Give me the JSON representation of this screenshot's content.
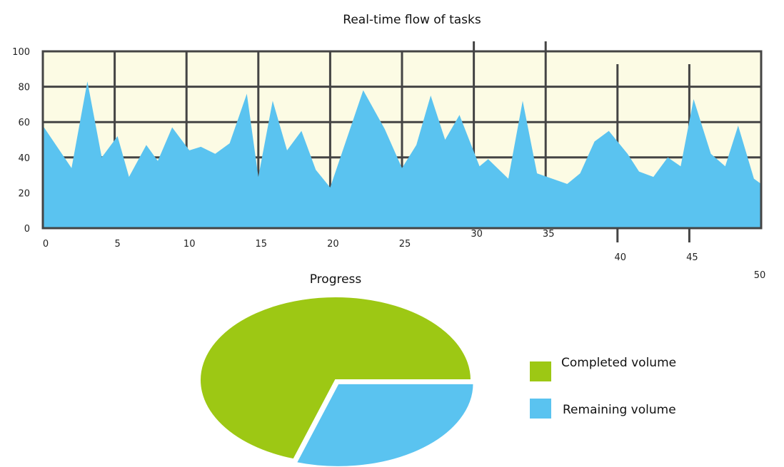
{
  "chart_data": [
    {
      "type": "area",
      "title": "Real-time flow of tasks",
      "xlim": [
        0,
        50
      ],
      "ylim": [
        0,
        100
      ],
      "x_ticks": [
        "0",
        "5",
        "10",
        "15",
        "20",
        "25",
        "30",
        "35",
        "40",
        "45",
        "50"
      ],
      "y_ticks": [
        "0",
        "20",
        "40",
        "60",
        "80",
        "100"
      ],
      "grid": true,
      "colors": {
        "fill": "#5ac3f0",
        "background": "#fcfbe4",
        "grid": "#444444"
      },
      "points": [
        [
          0,
          58
        ],
        [
          2,
          34
        ],
        [
          3.1,
          83
        ],
        [
          4.1,
          40
        ],
        [
          5.2,
          52
        ],
        [
          6,
          29
        ],
        [
          7.2,
          47
        ],
        [
          8,
          38
        ],
        [
          9,
          57
        ],
        [
          10.2,
          44
        ],
        [
          11,
          46
        ],
        [
          12,
          42
        ],
        [
          13,
          48
        ],
        [
          14.2,
          76
        ],
        [
          15,
          29
        ],
        [
          16,
          72
        ],
        [
          17,
          44
        ],
        [
          18,
          55
        ],
        [
          19,
          33
        ],
        [
          20,
          23
        ],
        [
          22.3,
          78
        ],
        [
          23.8,
          56
        ],
        [
          25,
          34
        ],
        [
          26,
          47
        ],
        [
          27,
          75
        ],
        [
          28,
          50
        ],
        [
          29,
          64
        ],
        [
          30.4,
          35
        ],
        [
          31,
          39
        ],
        [
          32.4,
          28
        ],
        [
          33.4,
          72
        ],
        [
          34.4,
          31
        ],
        [
          36.5,
          25
        ],
        [
          37.4,
          31
        ],
        [
          38.4,
          49
        ],
        [
          39.4,
          55
        ],
        [
          40.7,
          42
        ],
        [
          41.5,
          32
        ],
        [
          42.5,
          29
        ],
        [
          43.5,
          40
        ],
        [
          44.4,
          35
        ],
        [
          45.3,
          73
        ],
        [
          46.5,
          42
        ],
        [
          47.5,
          35
        ],
        [
          48.4,
          58
        ],
        [
          49.5,
          28
        ],
        [
          50,
          25
        ]
      ]
    },
    {
      "type": "pie",
      "title": "Progress",
      "legend_position": "right",
      "slices": [
        {
          "name": "Completed volume",
          "value": 70,
          "color": "#9dc814"
        },
        {
          "name": "Remaining volume",
          "value": 30,
          "color": "#5ac3f0"
        }
      ]
    }
  ]
}
